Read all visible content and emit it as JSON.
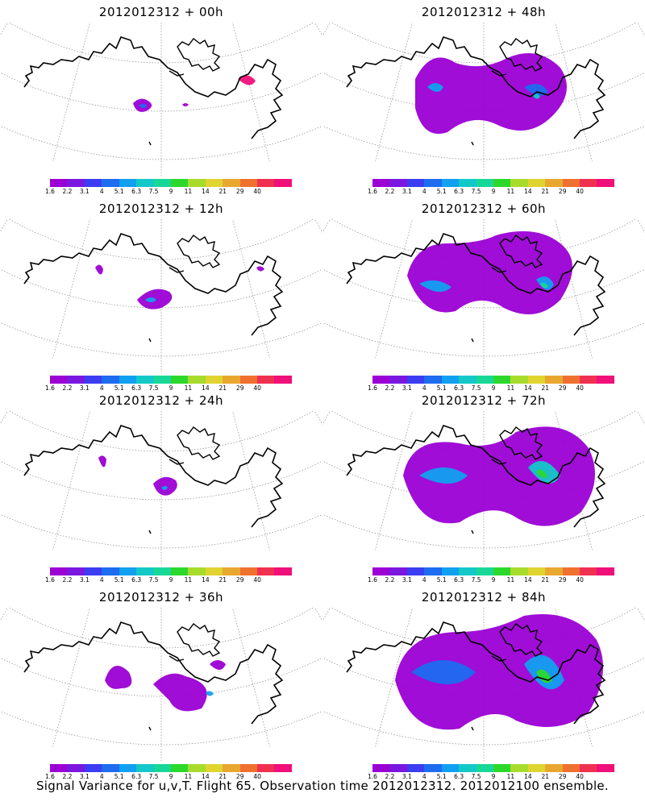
{
  "panels": [
    {
      "title": "2012012312 + 00h"
    },
    {
      "title": "2012012312 + 48h"
    },
    {
      "title": "2012012312 + 12h"
    },
    {
      "title": "2012012312 + 60h"
    },
    {
      "title": "2012012312 + 24h"
    },
    {
      "title": "2012012312 + 72h"
    },
    {
      "title": "2012012312 + 36h"
    },
    {
      "title": "2012012312 + 84h"
    }
  ],
  "colorbar": {
    "labels": [
      "1.6",
      "2.2",
      "3.1",
      "4",
      "5.1",
      "6.3",
      "7.5",
      "9",
      "11",
      "14",
      "21",
      "29",
      "40"
    ],
    "colors": [
      "#9b00d4",
      "#7a18e0",
      "#3c3cf0",
      "#1e6cf0",
      "#12a0f0",
      "#14c8c8",
      "#18d898",
      "#2cd82c",
      "#a8dc2c",
      "#e0d430",
      "#e8a830",
      "#f07030",
      "#f03050",
      "#f0107a"
    ]
  },
  "caption": "Signal Variance for u,v,T. Flight 65. Observation time 2012012312. 2012012100 ensemble."
}
